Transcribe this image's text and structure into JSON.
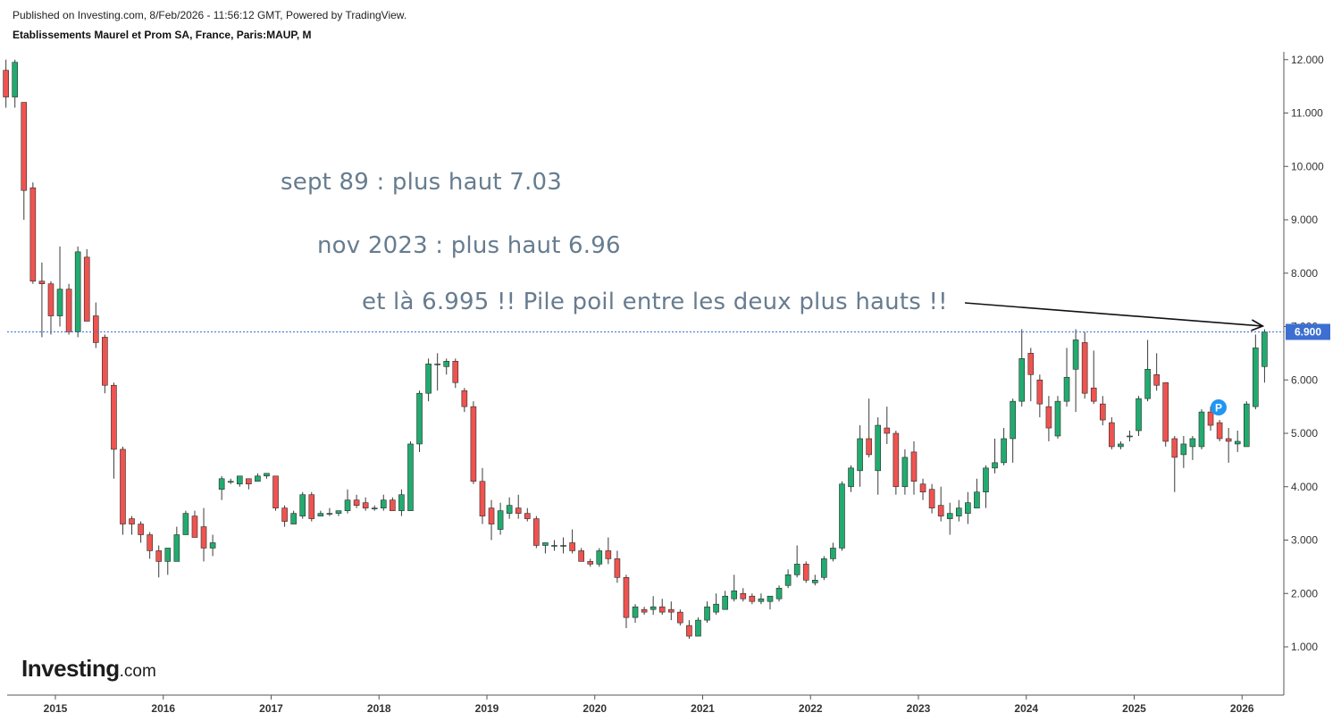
{
  "header": {
    "published": "Published on Investing.com, 8/Feb/2026 - 11:56:12 GMT, Powered by TradingView.",
    "title": "Etablissements Maurel et Prom SA, France, Paris:MAUP, M"
  },
  "annotations": [
    "sept 89 : plus haut 7.03",
    "nov 2023 : plus haut 6.96",
    "et là 6.995 !! Pile poil entre les deux plus hauts !!"
  ],
  "logo": {
    "main": "Investing",
    "suffix": ".com"
  },
  "colors": {
    "up": "#22ab6f",
    "down": "#ef5350",
    "price_line": "#3c6fd1",
    "price_label_bg": "#3c6fd1",
    "annotation_text": "#677c8f",
    "marker": "#2196f3"
  },
  "marker_label": "P",
  "chart_data": {
    "type": "candlestick",
    "interval": "M",
    "ylim": [
      0,
      12.15
    ],
    "y_ticks": [
      "1.000",
      "2.000",
      "3.000",
      "4.000",
      "5.000",
      "6.000",
      "7.000",
      "8.000",
      "9.000",
      "10.000",
      "11.000",
      "12.000"
    ],
    "x_ticks": [
      "2015",
      "2016",
      "2017",
      "2018",
      "2019",
      "2020",
      "2021",
      "2022",
      "2023",
      "2024",
      "2025",
      "2026"
    ],
    "x_tick_dates": [
      2015.0,
      2016.0,
      2017.0,
      2018.0,
      2019.0,
      2020.0,
      2021.0,
      2022.0,
      2023.0,
      2024.0,
      2025.0,
      2026.0
    ],
    "first_bar_date": 2014.5417,
    "current_price_label": "6.900",
    "current_price": 6.9,
    "ohlc": [
      [
        11.8,
        12.0,
        11.1,
        11.3
      ],
      [
        11.3,
        12.0,
        11.1,
        11.95
      ],
      [
        11.2,
        11.2,
        9.0,
        9.55
      ],
      [
        9.6,
        9.7,
        7.8,
        7.85
      ],
      [
        7.85,
        8.2,
        6.8,
        7.8
      ],
      [
        7.8,
        7.85,
        6.85,
        7.2
      ],
      [
        7.2,
        8.5,
        7.0,
        7.7
      ],
      [
        7.7,
        7.8,
        6.85,
        6.9
      ],
      [
        6.9,
        8.5,
        6.8,
        8.4
      ],
      [
        8.3,
        8.45,
        7.1,
        7.1
      ],
      [
        7.2,
        7.45,
        6.6,
        6.7
      ],
      [
        6.8,
        6.85,
        5.75,
        5.9
      ],
      [
        5.9,
        5.95,
        4.15,
        4.7
      ],
      [
        4.7,
        4.75,
        3.1,
        3.3
      ],
      [
        3.4,
        3.45,
        3.1,
        3.3
      ],
      [
        3.3,
        3.35,
        2.95,
        3.1
      ],
      [
        3.1,
        3.15,
        2.65,
        2.8
      ],
      [
        2.8,
        2.9,
        2.3,
        2.6
      ],
      [
        2.6,
        2.85,
        2.35,
        2.85
      ],
      [
        2.6,
        3.25,
        2.6,
        3.1
      ],
      [
        3.1,
        3.55,
        3.1,
        3.5
      ],
      [
        3.45,
        3.55,
        3.05,
        3.05
      ],
      [
        3.25,
        3.6,
        2.6,
        2.85
      ],
      [
        2.85,
        3.1,
        2.7,
        2.95
      ],
      [
        3.95,
        4.2,
        3.75,
        4.15
      ],
      [
        4.1,
        4.15,
        4.05,
        4.1
      ],
      [
        4.05,
        4.2,
        4.0,
        4.2
      ],
      [
        4.15,
        4.15,
        3.95,
        4.05
      ],
      [
        4.1,
        4.25,
        4.1,
        4.2
      ],
      [
        4.2,
        4.25,
        4.15,
        4.25
      ],
      [
        4.2,
        4.2,
        3.55,
        3.6
      ],
      [
        3.6,
        3.65,
        3.25,
        3.35
      ],
      [
        3.3,
        3.55,
        3.3,
        3.5
      ],
      [
        3.45,
        3.9,
        3.4,
        3.85
      ],
      [
        3.85,
        3.9,
        3.35,
        3.4
      ],
      [
        3.45,
        3.55,
        3.45,
        3.5
      ],
      [
        3.5,
        3.6,
        3.45,
        3.5
      ],
      [
        3.5,
        3.55,
        3.45,
        3.55
      ],
      [
        3.55,
        3.95,
        3.5,
        3.75
      ],
      [
        3.75,
        3.85,
        3.6,
        3.65
      ],
      [
        3.7,
        3.8,
        3.55,
        3.6
      ],
      [
        3.6,
        3.65,
        3.55,
        3.6
      ],
      [
        3.6,
        3.85,
        3.55,
        3.75
      ],
      [
        3.75,
        3.8,
        3.55,
        3.55
      ],
      [
        3.55,
        3.95,
        3.45,
        3.85
      ],
      [
        3.55,
        4.85,
        3.55,
        4.8
      ],
      [
        4.8,
        5.8,
        4.65,
        5.75
      ],
      [
        5.75,
        6.4,
        5.6,
        6.3
      ],
      [
        6.3,
        6.5,
        5.8,
        6.3
      ],
      [
        6.25,
        6.4,
        6.1,
        6.35
      ],
      [
        6.35,
        6.4,
        5.85,
        5.95
      ],
      [
        5.8,
        5.85,
        5.4,
        5.5
      ],
      [
        5.5,
        5.6,
        4.05,
        4.1
      ],
      [
        4.1,
        4.35,
        3.3,
        3.45
      ],
      [
        3.6,
        3.75,
        3.0,
        3.3
      ],
      [
        3.2,
        3.7,
        3.1,
        3.55
      ],
      [
        3.5,
        3.8,
        3.4,
        3.65
      ],
      [
        3.6,
        3.85,
        3.4,
        3.5
      ],
      [
        3.5,
        3.6,
        3.35,
        3.4
      ],
      [
        3.4,
        3.45,
        2.85,
        2.9
      ],
      [
        2.9,
        2.95,
        2.75,
        2.95
      ],
      [
        2.9,
        3.0,
        2.8,
        2.9
      ],
      [
        2.9,
        3.05,
        2.75,
        2.9
      ],
      [
        2.95,
        3.2,
        2.75,
        2.8
      ],
      [
        2.8,
        2.85,
        2.6,
        2.6
      ],
      [
        2.6,
        2.65,
        2.5,
        2.55
      ],
      [
        2.55,
        2.85,
        2.5,
        2.8
      ],
      [
        2.8,
        3.05,
        2.55,
        2.65
      ],
      [
        2.65,
        2.8,
        2.2,
        2.3
      ],
      [
        2.3,
        2.35,
        1.35,
        1.55
      ],
      [
        1.55,
        1.8,
        1.45,
        1.75
      ],
      [
        1.7,
        1.75,
        1.6,
        1.65
      ],
      [
        1.7,
        1.95,
        1.6,
        1.75
      ],
      [
        1.75,
        1.9,
        1.6,
        1.65
      ],
      [
        1.7,
        1.85,
        1.5,
        1.65
      ],
      [
        1.65,
        1.7,
        1.4,
        1.45
      ],
      [
        1.4,
        1.5,
        1.15,
        1.2
      ],
      [
        1.2,
        1.55,
        1.2,
        1.5
      ],
      [
        1.5,
        1.85,
        1.45,
        1.75
      ],
      [
        1.65,
        2.0,
        1.6,
        1.8
      ],
      [
        1.7,
        2.05,
        1.7,
        1.95
      ],
      [
        1.9,
        2.35,
        1.85,
        2.05
      ],
      [
        2.0,
        2.1,
        1.85,
        1.9
      ],
      [
        1.95,
        2.0,
        1.8,
        1.85
      ],
      [
        1.85,
        2.0,
        1.8,
        1.9
      ],
      [
        1.85,
        1.95,
        1.7,
        1.95
      ],
      [
        1.9,
        2.15,
        1.85,
        2.1
      ],
      [
        2.15,
        2.45,
        2.1,
        2.35
      ],
      [
        2.35,
        2.9,
        2.3,
        2.55
      ],
      [
        2.55,
        2.6,
        2.2,
        2.25
      ],
      [
        2.2,
        2.35,
        2.15,
        2.25
      ],
      [
        2.3,
        2.7,
        2.25,
        2.65
      ],
      [
        2.65,
        2.95,
        2.6,
        2.85
      ],
      [
        2.85,
        4.1,
        2.8,
        4.05
      ],
      [
        4.0,
        4.4,
        3.9,
        4.35
      ],
      [
        4.3,
        5.15,
        4.0,
        4.9
      ],
      [
        4.9,
        5.65,
        4.55,
        4.6
      ],
      [
        4.3,
        5.3,
        3.85,
        5.15
      ],
      [
        5.1,
        5.5,
        4.8,
        5.0
      ],
      [
        5.0,
        5.05,
        3.85,
        4.0
      ],
      [
        4.0,
        4.7,
        3.85,
        4.55
      ],
      [
        4.65,
        4.85,
        3.85,
        4.1
      ],
      [
        4.05,
        4.15,
        3.75,
        3.9
      ],
      [
        3.95,
        4.05,
        3.5,
        3.6
      ],
      [
        3.65,
        4.0,
        3.35,
        3.45
      ],
      [
        3.4,
        3.7,
        3.1,
        3.5
      ],
      [
        3.45,
        3.75,
        3.35,
        3.6
      ],
      [
        3.5,
        3.9,
        3.3,
        3.7
      ],
      [
        3.6,
        4.15,
        3.6,
        3.9
      ],
      [
        3.9,
        4.4,
        3.6,
        4.35
      ],
      [
        4.35,
        4.9,
        4.25,
        4.45
      ],
      [
        4.45,
        5.1,
        4.4,
        4.9
      ],
      [
        4.9,
        5.65,
        4.45,
        5.6
      ],
      [
        5.6,
        6.95,
        5.5,
        6.4
      ],
      [
        6.5,
        6.6,
        5.6,
        6.1
      ],
      [
        6.0,
        6.1,
        5.3,
        5.55
      ],
      [
        5.5,
        5.7,
        4.85,
        5.1
      ],
      [
        4.95,
        5.7,
        4.9,
        5.6
      ],
      [
        5.6,
        6.6,
        5.5,
        6.05
      ],
      [
        6.2,
        6.95,
        5.4,
        6.75
      ],
      [
        6.7,
        6.9,
        5.65,
        5.75
      ],
      [
        5.85,
        6.55,
        5.55,
        5.6
      ],
      [
        5.55,
        5.7,
        5.15,
        5.25
      ],
      [
        5.2,
        5.3,
        4.7,
        4.75
      ],
      [
        4.75,
        4.85,
        4.7,
        4.8
      ],
      [
        4.95,
        5.05,
        4.85,
        4.95
      ],
      [
        5.05,
        5.7,
        4.95,
        5.65
      ],
      [
        5.65,
        6.75,
        5.6,
        6.2
      ],
      [
        6.1,
        6.5,
        5.8,
        5.9
      ],
      [
        5.95,
        5.95,
        4.75,
        4.85
      ],
      [
        4.9,
        4.95,
        3.9,
        4.55
      ],
      [
        4.6,
        4.95,
        4.35,
        4.8
      ],
      [
        4.75,
        4.95,
        4.5,
        4.9
      ],
      [
        4.75,
        5.45,
        4.7,
        5.4
      ],
      [
        5.4,
        5.5,
        5.05,
        5.15
      ],
      [
        5.2,
        5.25,
        4.85,
        4.9
      ],
      [
        4.9,
        5.1,
        4.45,
        4.85
      ],
      [
        4.8,
        5.05,
        4.65,
        4.85
      ],
      [
        4.75,
        5.6,
        4.75,
        5.55
      ],
      [
        5.5,
        6.85,
        5.45,
        6.6
      ],
      [
        6.25,
        6.95,
        5.95,
        6.9
      ]
    ]
  }
}
